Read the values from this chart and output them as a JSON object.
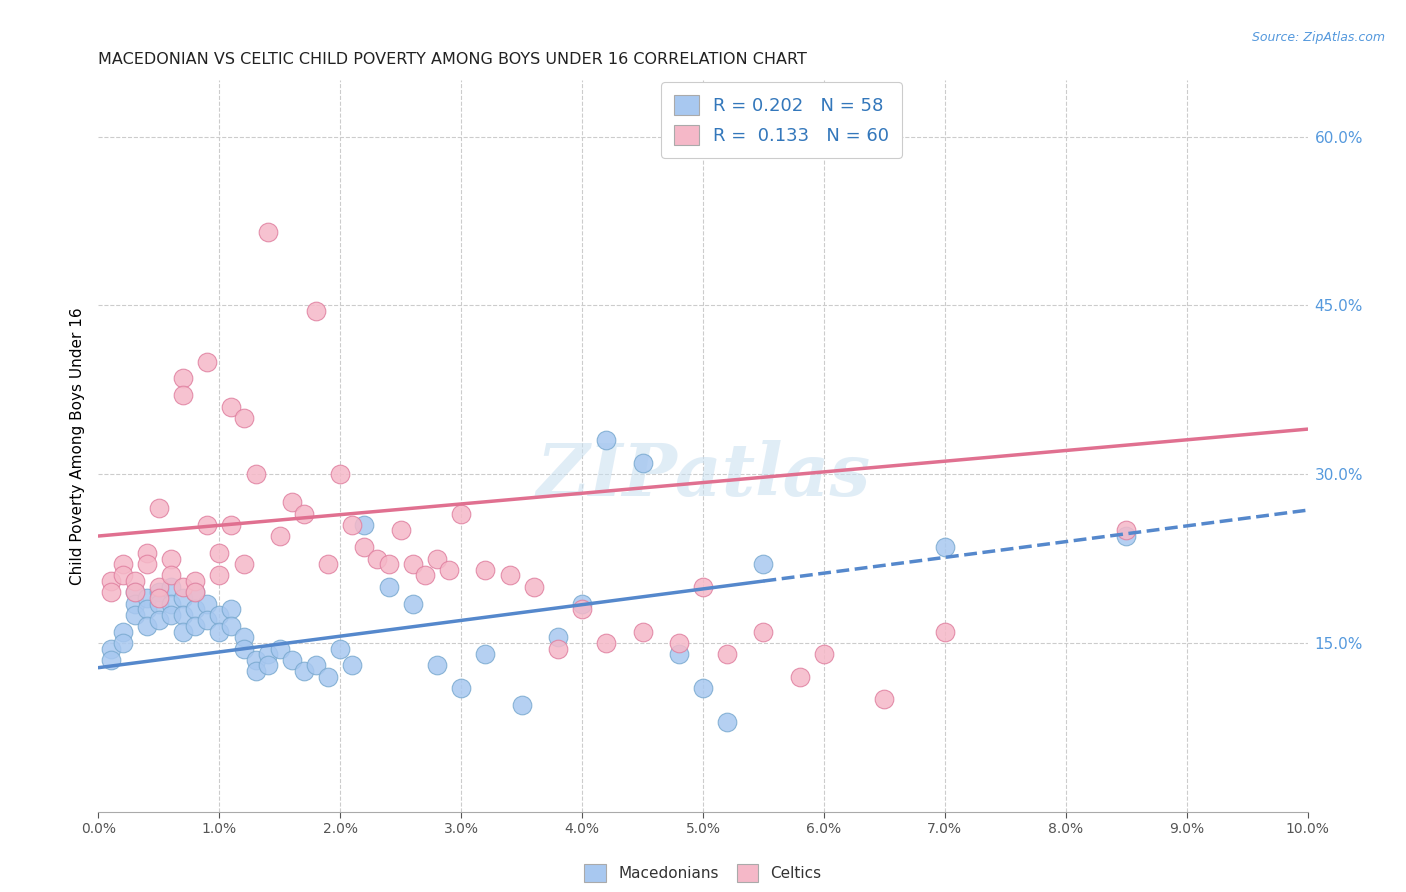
{
  "title": "MACEDONIAN VS CELTIC CHILD POVERTY AMONG BOYS UNDER 16 CORRELATION CHART",
  "source": "Source: ZipAtlas.com",
  "ylabel": "Child Poverty Among Boys Under 16",
  "right_yticks": [
    "15.0%",
    "30.0%",
    "45.0%",
    "60.0%"
  ],
  "right_ytick_vals": [
    0.15,
    0.3,
    0.45,
    0.6
  ],
  "xlim": [
    0.0,
    0.1
  ],
  "ylim": [
    0.0,
    0.65
  ],
  "mac_color": "#a8c8f0",
  "mac_edge": "#7aaad0",
  "celtic_color": "#f5b8c8",
  "celtic_edge": "#e080a0",
  "mac_trend_color": "#5588cc",
  "celtic_trend_color": "#e07090",
  "watermark": "ZIPatlas",
  "mac_x": [
    0.001,
    0.001,
    0.002,
    0.002,
    0.003,
    0.003,
    0.003,
    0.004,
    0.004,
    0.004,
    0.005,
    0.005,
    0.005,
    0.006,
    0.006,
    0.006,
    0.007,
    0.007,
    0.007,
    0.008,
    0.008,
    0.008,
    0.009,
    0.009,
    0.01,
    0.01,
    0.011,
    0.011,
    0.012,
    0.012,
    0.013,
    0.013,
    0.014,
    0.014,
    0.015,
    0.016,
    0.017,
    0.018,
    0.019,
    0.02,
    0.021,
    0.022,
    0.024,
    0.026,
    0.028,
    0.03,
    0.032,
    0.035,
    0.038,
    0.04,
    0.042,
    0.045,
    0.048,
    0.05,
    0.052,
    0.055,
    0.07,
    0.085
  ],
  "mac_y": [
    0.145,
    0.135,
    0.16,
    0.15,
    0.195,
    0.185,
    0.175,
    0.19,
    0.18,
    0.165,
    0.195,
    0.185,
    0.17,
    0.2,
    0.185,
    0.175,
    0.19,
    0.175,
    0.16,
    0.195,
    0.18,
    0.165,
    0.185,
    0.17,
    0.175,
    0.16,
    0.18,
    0.165,
    0.155,
    0.145,
    0.135,
    0.125,
    0.14,
    0.13,
    0.145,
    0.135,
    0.125,
    0.13,
    0.12,
    0.145,
    0.13,
    0.255,
    0.2,
    0.185,
    0.13,
    0.11,
    0.14,
    0.095,
    0.155,
    0.185,
    0.33,
    0.31,
    0.14,
    0.11,
    0.08,
    0.22,
    0.235,
    0.245
  ],
  "celtic_x": [
    0.001,
    0.001,
    0.002,
    0.002,
    0.003,
    0.003,
    0.004,
    0.004,
    0.005,
    0.005,
    0.005,
    0.006,
    0.006,
    0.007,
    0.007,
    0.007,
    0.008,
    0.008,
    0.009,
    0.009,
    0.01,
    0.01,
    0.011,
    0.011,
    0.012,
    0.012,
    0.013,
    0.014,
    0.015,
    0.016,
    0.017,
    0.018,
    0.019,
    0.02,
    0.021,
    0.022,
    0.023,
    0.024,
    0.025,
    0.026,
    0.027,
    0.028,
    0.029,
    0.03,
    0.032,
    0.034,
    0.036,
    0.038,
    0.04,
    0.042,
    0.045,
    0.048,
    0.05,
    0.052,
    0.055,
    0.058,
    0.06,
    0.065,
    0.07,
    0.085
  ],
  "celtic_y": [
    0.205,
    0.195,
    0.22,
    0.21,
    0.205,
    0.195,
    0.23,
    0.22,
    0.2,
    0.19,
    0.27,
    0.225,
    0.21,
    0.385,
    0.37,
    0.2,
    0.205,
    0.195,
    0.255,
    0.4,
    0.23,
    0.21,
    0.36,
    0.255,
    0.22,
    0.35,
    0.3,
    0.515,
    0.245,
    0.275,
    0.265,
    0.445,
    0.22,
    0.3,
    0.255,
    0.235,
    0.225,
    0.22,
    0.25,
    0.22,
    0.21,
    0.225,
    0.215,
    0.265,
    0.215,
    0.21,
    0.2,
    0.145,
    0.18,
    0.15,
    0.16,
    0.15,
    0.2,
    0.14,
    0.16,
    0.12,
    0.14,
    0.1,
    0.16,
    0.25
  ],
  "mac_trend_x0": 0.0,
  "mac_trend_x1": 0.055,
  "mac_trend_x_dash0": 0.055,
  "mac_trend_x_dash1": 0.1,
  "mac_trend_y0": 0.128,
  "mac_trend_y1": 0.205,
  "celtic_trend_x0": 0.0,
  "celtic_trend_x1": 0.1,
  "celtic_trend_y0": 0.245,
  "celtic_trend_y1": 0.34
}
